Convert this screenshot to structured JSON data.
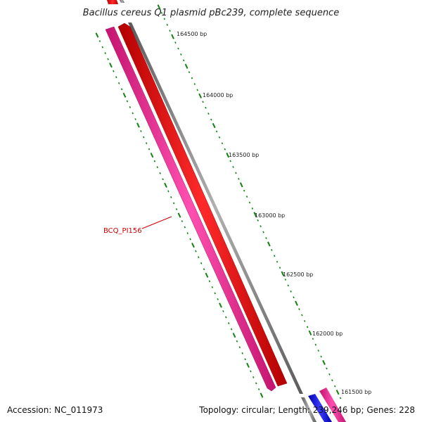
{
  "title": "Bacillus cereus Q1 plasmid pBc239, complete sequence",
  "accession_text": "Accession: NC_011973",
  "stats_text": "Topology: circular; Length: 239,246 bp; Genes: 228",
  "scale": {
    "unit": "bp",
    "labels": [
      {
        "position": 164500,
        "text": "164500 bp"
      },
      {
        "position": 164000,
        "text": "164000 bp"
      },
      {
        "position": 163500,
        "text": "163500 bp"
      },
      {
        "position": 163000,
        "text": "163000 bp"
      },
      {
        "position": 162500,
        "text": "162500 bp"
      },
      {
        "position": 162000,
        "text": "162000 bp"
      },
      {
        "position": 161500,
        "text": "161500 bp"
      }
    ]
  },
  "genes": [
    {
      "label": "BCQ_PI156",
      "strand": "forward",
      "color": "#ee1c8c"
    },
    {
      "label": "",
      "strand": "reverse",
      "color": "#ff0000"
    }
  ],
  "colors": {
    "backbone": "#808080",
    "tick": "#138013",
    "forward_gene": "#ee1c8c",
    "reverse_gene": "#ff0000",
    "other_gene": "#0000ee",
    "label": "#cc0000"
  }
}
